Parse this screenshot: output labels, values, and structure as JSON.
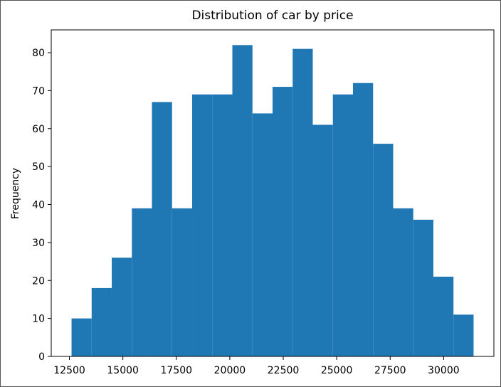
{
  "chart_data": {
    "type": "histogram",
    "title": "Distribution of car by price",
    "xlabel": "",
    "ylabel": "Frequency",
    "bar_color": "#1f77b4",
    "grid": false,
    "xlim": [
      11650,
      32350
    ],
    "ylim": [
      0,
      86
    ],
    "x_ticks": [
      12500,
      15000,
      17500,
      20000,
      22500,
      25000,
      27500,
      30000
    ],
    "y_ticks": [
      0,
      10,
      20,
      30,
      40,
      50,
      60,
      70,
      80
    ],
    "bins": [
      {
        "start": 12600,
        "end": 13540,
        "count": 10
      },
      {
        "start": 13540,
        "end": 14480,
        "count": 18
      },
      {
        "start": 14480,
        "end": 15420,
        "count": 26
      },
      {
        "start": 15420,
        "end": 16360,
        "count": 39
      },
      {
        "start": 16360,
        "end": 17300,
        "count": 67
      },
      {
        "start": 17300,
        "end": 18240,
        "count": 39
      },
      {
        "start": 18240,
        "end": 19180,
        "count": 69
      },
      {
        "start": 19180,
        "end": 20120,
        "count": 69
      },
      {
        "start": 20120,
        "end": 21060,
        "count": 82
      },
      {
        "start": 21060,
        "end": 22000,
        "count": 64
      },
      {
        "start": 22000,
        "end": 22940,
        "count": 71
      },
      {
        "start": 22940,
        "end": 23880,
        "count": 81
      },
      {
        "start": 23880,
        "end": 24820,
        "count": 61
      },
      {
        "start": 24820,
        "end": 25760,
        "count": 69
      },
      {
        "start": 25760,
        "end": 26700,
        "count": 72
      },
      {
        "start": 26700,
        "end": 27640,
        "count": 56
      },
      {
        "start": 27640,
        "end": 28580,
        "count": 39
      },
      {
        "start": 28580,
        "end": 29520,
        "count": 36
      },
      {
        "start": 29520,
        "end": 30460,
        "count": 21
      },
      {
        "start": 30460,
        "end": 31400,
        "count": 11
      }
    ]
  }
}
